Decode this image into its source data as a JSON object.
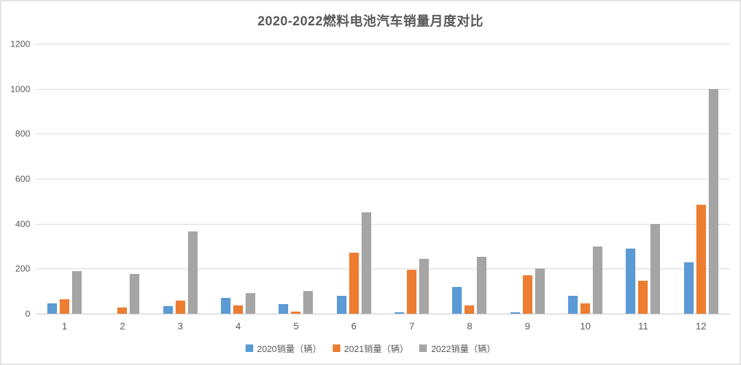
{
  "chart_data": {
    "type": "bar",
    "title": "2020-2022燃料电池汽车销量月度对比",
    "xlabel": "",
    "ylabel": "",
    "categories": [
      "1",
      "2",
      "3",
      "4",
      "5",
      "6",
      "7",
      "8",
      "9",
      "10",
      "11",
      "12"
    ],
    "series": [
      {
        "key": "2020",
        "name": "2020销量（辆）",
        "color": "#5b9bd5",
        "values": [
          45,
          0,
          35,
          70,
          42,
          78,
          5,
          120,
          6,
          80,
          290,
          228
        ]
      },
      {
        "key": "2021",
        "name": "2021销量（辆）",
        "color": "#ed7d31",
        "values": [
          63,
          28,
          58,
          38,
          10,
          270,
          195,
          38,
          172,
          47,
          145,
          485
        ]
      },
      {
        "key": "2022",
        "name": "2022销量（辆）",
        "color": "#a5a5a5",
        "values": [
          190,
          178,
          365,
          92,
          100,
          450,
          245,
          253,
          200,
          300,
          400,
          1000
        ]
      }
    ],
    "ylim": [
      0,
      1200
    ],
    "ytick_step": 200,
    "yticks": [
      "1200",
      "1000",
      "800",
      "600",
      "400",
      "200",
      "0"
    ],
    "grid": true,
    "legend_position": "bottom"
  },
  "colors": {
    "text": "#595959",
    "gridline": "#d9d9d9",
    "axis_line": "#c6c6c6",
    "frame_border": "#e2e2e2",
    "background": "#ffffff"
  }
}
